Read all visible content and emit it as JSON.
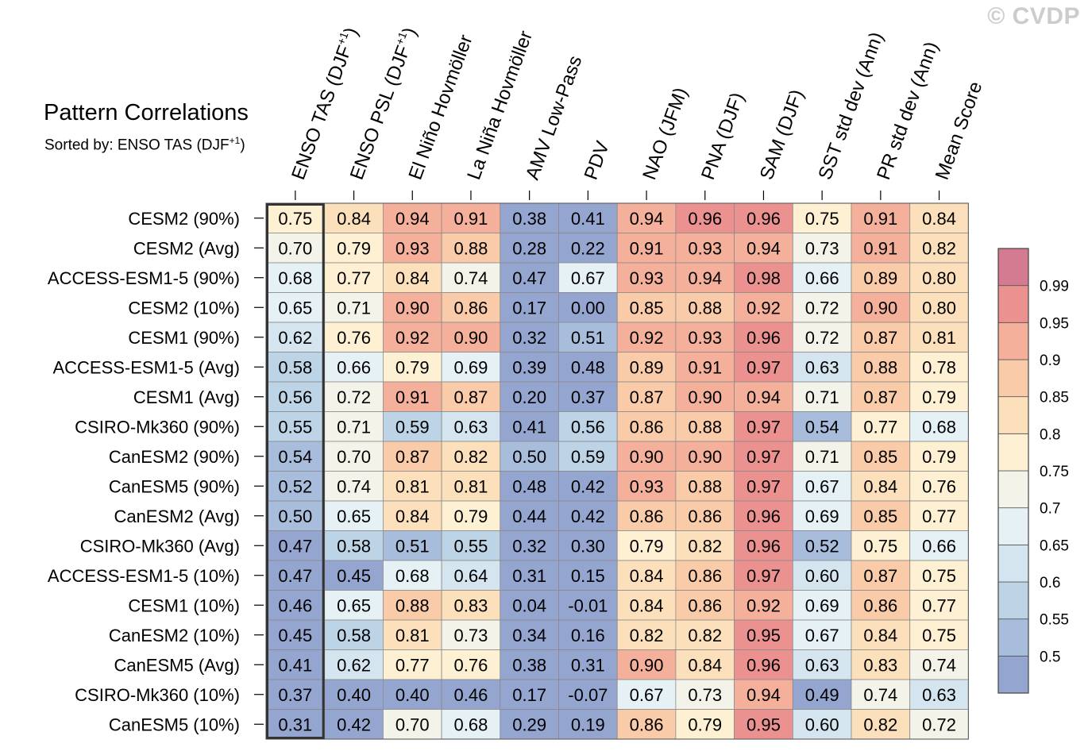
{
  "watermark": "© CVDP",
  "title": "Pattern Correlations",
  "subtitle_text": "Sorted by: ENSO TAS (DJF",
  "subtitle_sup": "+1",
  "subtitle_end": ")",
  "chart_data": {
    "type": "heatmap",
    "title": "Pattern Correlations",
    "columns": [
      {
        "label": "ENSO TAS (DJF",
        "sup": "+1",
        "end": ")"
      },
      {
        "label": "ENSO PSL (DJF",
        "sup": "+1",
        "end": ")"
      },
      {
        "label": "El Niño Hovmöller",
        "sup": "",
        "end": ""
      },
      {
        "label": "La Niña Hovmöller",
        "sup": "",
        "end": ""
      },
      {
        "label": "AMV Low-Pass",
        "sup": "",
        "end": ""
      },
      {
        "label": "PDV",
        "sup": "",
        "end": ""
      },
      {
        "label": "NAO (JFM)",
        "sup": "",
        "end": ""
      },
      {
        "label": "PNA (DJF)",
        "sup": "",
        "end": ""
      },
      {
        "label": "SAM (DJF)",
        "sup": "",
        "end": ""
      },
      {
        "label": "SST std dev (Ann)",
        "sup": "",
        "end": ""
      },
      {
        "label": "PR std dev (Ann)",
        "sup": "",
        "end": ""
      },
      {
        "label": "Mean Score",
        "sup": "",
        "end": ""
      }
    ],
    "rows": [
      "CESM2 (90%)",
      "CESM2 (Avg)",
      "ACCESS-ESM1-5 (90%)",
      "CESM2 (10%)",
      "CESM1 (90%)",
      "ACCESS-ESM1-5 (Avg)",
      "CESM1 (Avg)",
      "CSIRO-Mk360 (90%)",
      "CanESM2 (90%)",
      "CanESM5 (90%)",
      "CanESM2 (Avg)",
      "CSIRO-Mk360 (Avg)",
      "ACCESS-ESM1-5 (10%)",
      "CESM1 (10%)",
      "CanESM2 (10%)",
      "CanESM5 (Avg)",
      "CSIRO-Mk360 (10%)",
      "CanESM5 (10%)"
    ],
    "values": [
      [
        "0.75",
        "0.84",
        "0.94",
        "0.91",
        "0.38",
        "0.41",
        "0.94",
        "0.96",
        "0.96",
        "0.75",
        "0.91",
        "0.84"
      ],
      [
        "0.70",
        "0.79",
        "0.93",
        "0.88",
        "0.28",
        "0.22",
        "0.91",
        "0.93",
        "0.94",
        "0.73",
        "0.91",
        "0.82"
      ],
      [
        "0.68",
        "0.77",
        "0.84",
        "0.74",
        "0.47",
        "0.67",
        "0.93",
        "0.94",
        "0.98",
        "0.66",
        "0.89",
        "0.80"
      ],
      [
        "0.65",
        "0.71",
        "0.90",
        "0.86",
        "0.17",
        "0.00",
        "0.85",
        "0.88",
        "0.92",
        "0.72",
        "0.90",
        "0.80"
      ],
      [
        "0.62",
        "0.76",
        "0.92",
        "0.90",
        "0.32",
        "0.51",
        "0.92",
        "0.93",
        "0.96",
        "0.72",
        "0.87",
        "0.81"
      ],
      [
        "0.58",
        "0.66",
        "0.79",
        "0.69",
        "0.39",
        "0.48",
        "0.89",
        "0.91",
        "0.97",
        "0.63",
        "0.88",
        "0.78"
      ],
      [
        "0.56",
        "0.72",
        "0.91",
        "0.87",
        "0.20",
        "0.37",
        "0.87",
        "0.90",
        "0.94",
        "0.71",
        "0.87",
        "0.79"
      ],
      [
        "0.55",
        "0.71",
        "0.59",
        "0.63",
        "0.41",
        "0.56",
        "0.86",
        "0.88",
        "0.97",
        "0.54",
        "0.77",
        "0.68"
      ],
      [
        "0.54",
        "0.70",
        "0.87",
        "0.82",
        "0.50",
        "0.59",
        "0.90",
        "0.90",
        "0.97",
        "0.71",
        "0.85",
        "0.79"
      ],
      [
        "0.52",
        "0.74",
        "0.81",
        "0.81",
        "0.48",
        "0.42",
        "0.93",
        "0.88",
        "0.97",
        "0.67",
        "0.84",
        "0.76"
      ],
      [
        "0.50",
        "0.65",
        "0.84",
        "0.79",
        "0.44",
        "0.42",
        "0.86",
        "0.86",
        "0.96",
        "0.69",
        "0.85",
        "0.77"
      ],
      [
        "0.47",
        "0.58",
        "0.51",
        "0.55",
        "0.32",
        "0.30",
        "0.79",
        "0.82",
        "0.96",
        "0.52",
        "0.75",
        "0.66"
      ],
      [
        "0.47",
        "0.45",
        "0.68",
        "0.64",
        "0.31",
        "0.15",
        "0.84",
        "0.86",
        "0.97",
        "0.60",
        "0.87",
        "0.75"
      ],
      [
        "0.46",
        "0.65",
        "0.88",
        "0.83",
        "0.04",
        "-0.01",
        "0.84",
        "0.86",
        "0.92",
        "0.69",
        "0.86",
        "0.77"
      ],
      [
        "0.45",
        "0.58",
        "0.81",
        "0.73",
        "0.34",
        "0.16",
        "0.82",
        "0.82",
        "0.95",
        "0.67",
        "0.84",
        "0.75"
      ],
      [
        "0.41",
        "0.62",
        "0.77",
        "0.76",
        "0.38",
        "0.31",
        "0.90",
        "0.84",
        "0.96",
        "0.63",
        "0.83",
        "0.74"
      ],
      [
        "0.37",
        "0.40",
        "0.40",
        "0.46",
        "0.17",
        "-0.07",
        "0.67",
        "0.73",
        "0.94",
        "0.49",
        "0.74",
        "0.63"
      ],
      [
        "0.31",
        "0.42",
        "0.70",
        "0.68",
        "0.29",
        "0.19",
        "0.86",
        "0.79",
        "0.95",
        "0.60",
        "0.82",
        "0.72"
      ]
    ],
    "highlight_column": 0,
    "colorbar": {
      "levels": [
        0.5,
        0.55,
        0.6,
        0.65,
        0.7,
        0.75,
        0.8,
        0.85,
        0.9,
        0.95,
        0.99
      ],
      "labels": [
        "0.5",
        "0.55",
        "0.6",
        "0.65",
        "0.7",
        "0.75",
        "0.8",
        "0.85",
        "0.9",
        "0.95",
        "0.99"
      ],
      "colors": [
        "#94a5d0",
        "#a8bcdb",
        "#bdd3e6",
        "#d4e5f0",
        "#e6f1f6",
        "#f3f3ea",
        "#fdf0d3",
        "#fce0bb",
        "#f9cba8",
        "#f4b09a",
        "#eb9190",
        "#d47b91"
      ]
    }
  }
}
